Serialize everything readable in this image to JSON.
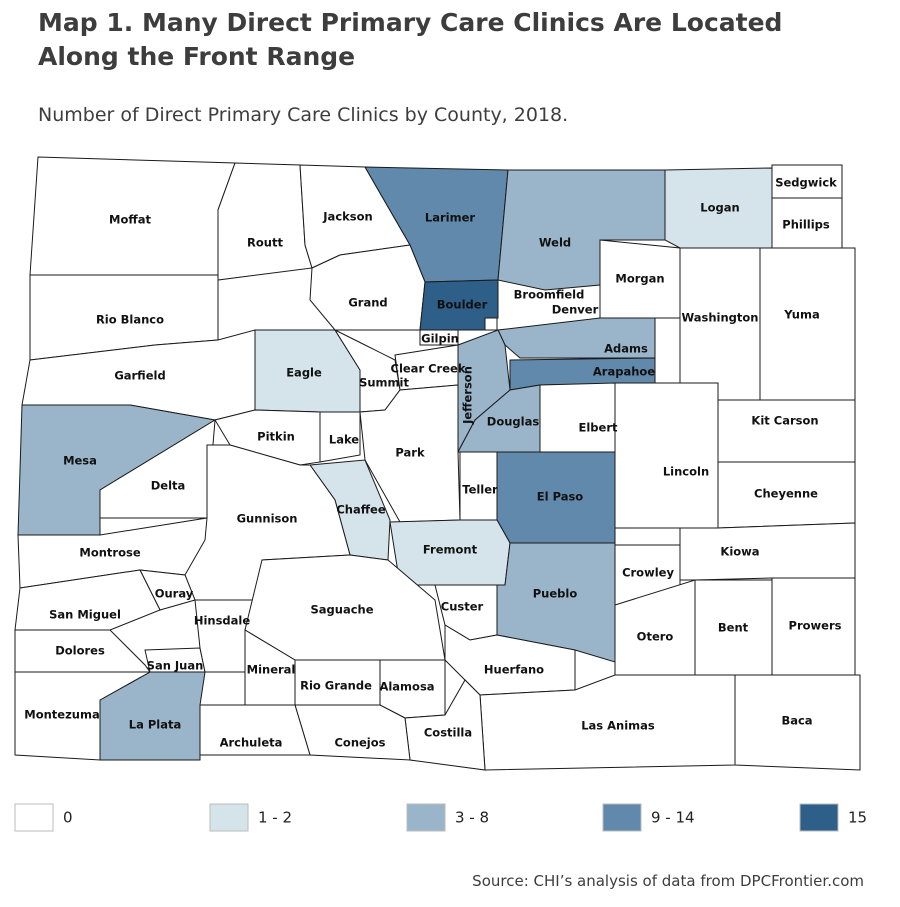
{
  "title": "Map 1. Many Direct Primary Care Clinics Are Located Along the Front Range",
  "subtitle": "Number of Direct Primary Care Clinics by County, 2018.",
  "source": "Source: CHI’s analysis of data from DPCFrontier.com",
  "legend": [
    {
      "label": "0",
      "color": "#ffffff"
    },
    {
      "label": "1 - 2",
      "color": "#d5e4ea"
    },
    {
      "label": "3 - 8",
      "color": "#9ab5c9"
    },
    {
      "label": "9 - 14",
      "color": "#6189ab"
    },
    {
      "label": "15",
      "color": "#2e5f88"
    }
  ],
  "counties": [
    {
      "name": "Moffat",
      "color": "#ffffff"
    },
    {
      "name": "Routt",
      "color": "#ffffff"
    },
    {
      "name": "Jackson",
      "color": "#ffffff"
    },
    {
      "name": "Larimer",
      "color": "#6189ab"
    },
    {
      "name": "Weld",
      "color": "#9ab5c9"
    },
    {
      "name": "Logan",
      "color": "#d5e4ea"
    },
    {
      "name": "Sedgwick",
      "color": "#ffffff"
    },
    {
      "name": "Phillips",
      "color": "#ffffff"
    },
    {
      "name": "Morgan",
      "color": "#ffffff"
    },
    {
      "name": "Washington",
      "color": "#ffffff"
    },
    {
      "name": "Yuma",
      "color": "#ffffff"
    },
    {
      "name": "Rio Blanco",
      "color": "#ffffff"
    },
    {
      "name": "Garfield",
      "color": "#ffffff"
    },
    {
      "name": "Grand",
      "color": "#ffffff"
    },
    {
      "name": "Boulder",
      "color": "#2e5f88"
    },
    {
      "name": "Broomfield",
      "color": "#ffffff"
    },
    {
      "name": "Gilpin",
      "color": "#ffffff"
    },
    {
      "name": "Eagle",
      "color": "#d5e4ea"
    },
    {
      "name": "Summit",
      "color": "#ffffff"
    },
    {
      "name": "Clear Creek",
      "color": "#ffffff"
    },
    {
      "name": "Denver",
      "color": "#6189ab"
    },
    {
      "name": "Adams",
      "color": "#9ab5c9"
    },
    {
      "name": "Arapahoe",
      "color": "#6189ab"
    },
    {
      "name": "Jefferson",
      "color": "#9ab5c9"
    },
    {
      "name": "Douglas",
      "color": "#9ab5c9"
    },
    {
      "name": "Elbert",
      "color": "#ffffff"
    },
    {
      "name": "Lincoln",
      "color": "#ffffff"
    },
    {
      "name": "Kit Carson",
      "color": "#ffffff"
    },
    {
      "name": "Cheyenne",
      "color": "#ffffff"
    },
    {
      "name": "Kiowa",
      "color": "#ffffff"
    },
    {
      "name": "Mesa",
      "color": "#9ab5c9"
    },
    {
      "name": "Delta",
      "color": "#ffffff"
    },
    {
      "name": "Pitkin",
      "color": "#ffffff"
    },
    {
      "name": "Lake",
      "color": "#ffffff"
    },
    {
      "name": "Park",
      "color": "#ffffff"
    },
    {
      "name": "Teller",
      "color": "#ffffff"
    },
    {
      "name": "El Paso",
      "color": "#6189ab"
    },
    {
      "name": "Chaffee",
      "color": "#d5e4ea"
    },
    {
      "name": "Gunnison",
      "color": "#ffffff"
    },
    {
      "name": "Montrose",
      "color": "#ffffff"
    },
    {
      "name": "Fremont",
      "color": "#d5e4ea"
    },
    {
      "name": "Pueblo",
      "color": "#9ab5c9"
    },
    {
      "name": "Crowley",
      "color": "#ffffff"
    },
    {
      "name": "Otero",
      "color": "#ffffff"
    },
    {
      "name": "Bent",
      "color": "#ffffff"
    },
    {
      "name": "Prowers",
      "color": "#ffffff"
    },
    {
      "name": "Ouray",
      "color": "#ffffff"
    },
    {
      "name": "San Miguel",
      "color": "#ffffff"
    },
    {
      "name": "Dolores",
      "color": "#ffffff"
    },
    {
      "name": "San Juan",
      "color": "#ffffff"
    },
    {
      "name": "Hinsdale",
      "color": "#ffffff"
    },
    {
      "name": "Saguache",
      "color": "#ffffff"
    },
    {
      "name": "Custer",
      "color": "#ffffff"
    },
    {
      "name": "Mineral",
      "color": "#ffffff"
    },
    {
      "name": "Rio Grande",
      "color": "#ffffff"
    },
    {
      "name": "Alamosa",
      "color": "#ffffff"
    },
    {
      "name": "Huerfano",
      "color": "#ffffff"
    },
    {
      "name": "Las Animas",
      "color": "#ffffff"
    },
    {
      "name": "Baca",
      "color": "#ffffff"
    },
    {
      "name": "Costilla",
      "color": "#ffffff"
    },
    {
      "name": "Conejos",
      "color": "#ffffff"
    },
    {
      "name": "Archuleta",
      "color": "#ffffff"
    },
    {
      "name": "La Plata",
      "color": "#9ab5c9"
    },
    {
      "name": "Montezuma",
      "color": "#ffffff"
    }
  ]
}
